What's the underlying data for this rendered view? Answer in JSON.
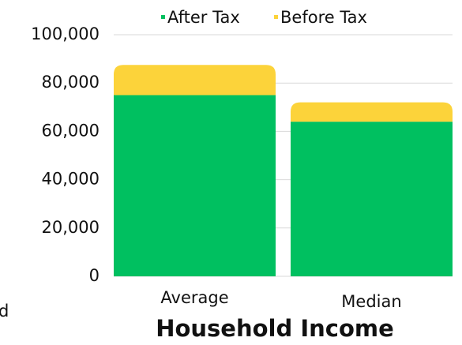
{
  "chart_data": {
    "type": "stacked-bar",
    "title": "Household Income",
    "annotation": "d",
    "categories": [
      "Average",
      "Median"
    ],
    "series": [
      {
        "name": "After Tax",
        "color": "#00c060",
        "values": [
          75000,
          64000
        ]
      },
      {
        "name": "Before Tax",
        "color": "#fcd33a",
        "values": [
          12500,
          8000
        ]
      }
    ],
    "ylim": [
      0,
      100000
    ],
    "yticks": [
      0,
      {
        "value": 20000,
        "label": "20,000"
      },
      {
        "value": 40000,
        "label": "40,000"
      },
      {
        "value": 60000,
        "label": "60,000"
      },
      {
        "value": 80000,
        "label": "80,000"
      },
      {
        "value": 100000,
        "label": "100,000"
      }
    ],
    "grid": true,
    "legend": "top"
  }
}
